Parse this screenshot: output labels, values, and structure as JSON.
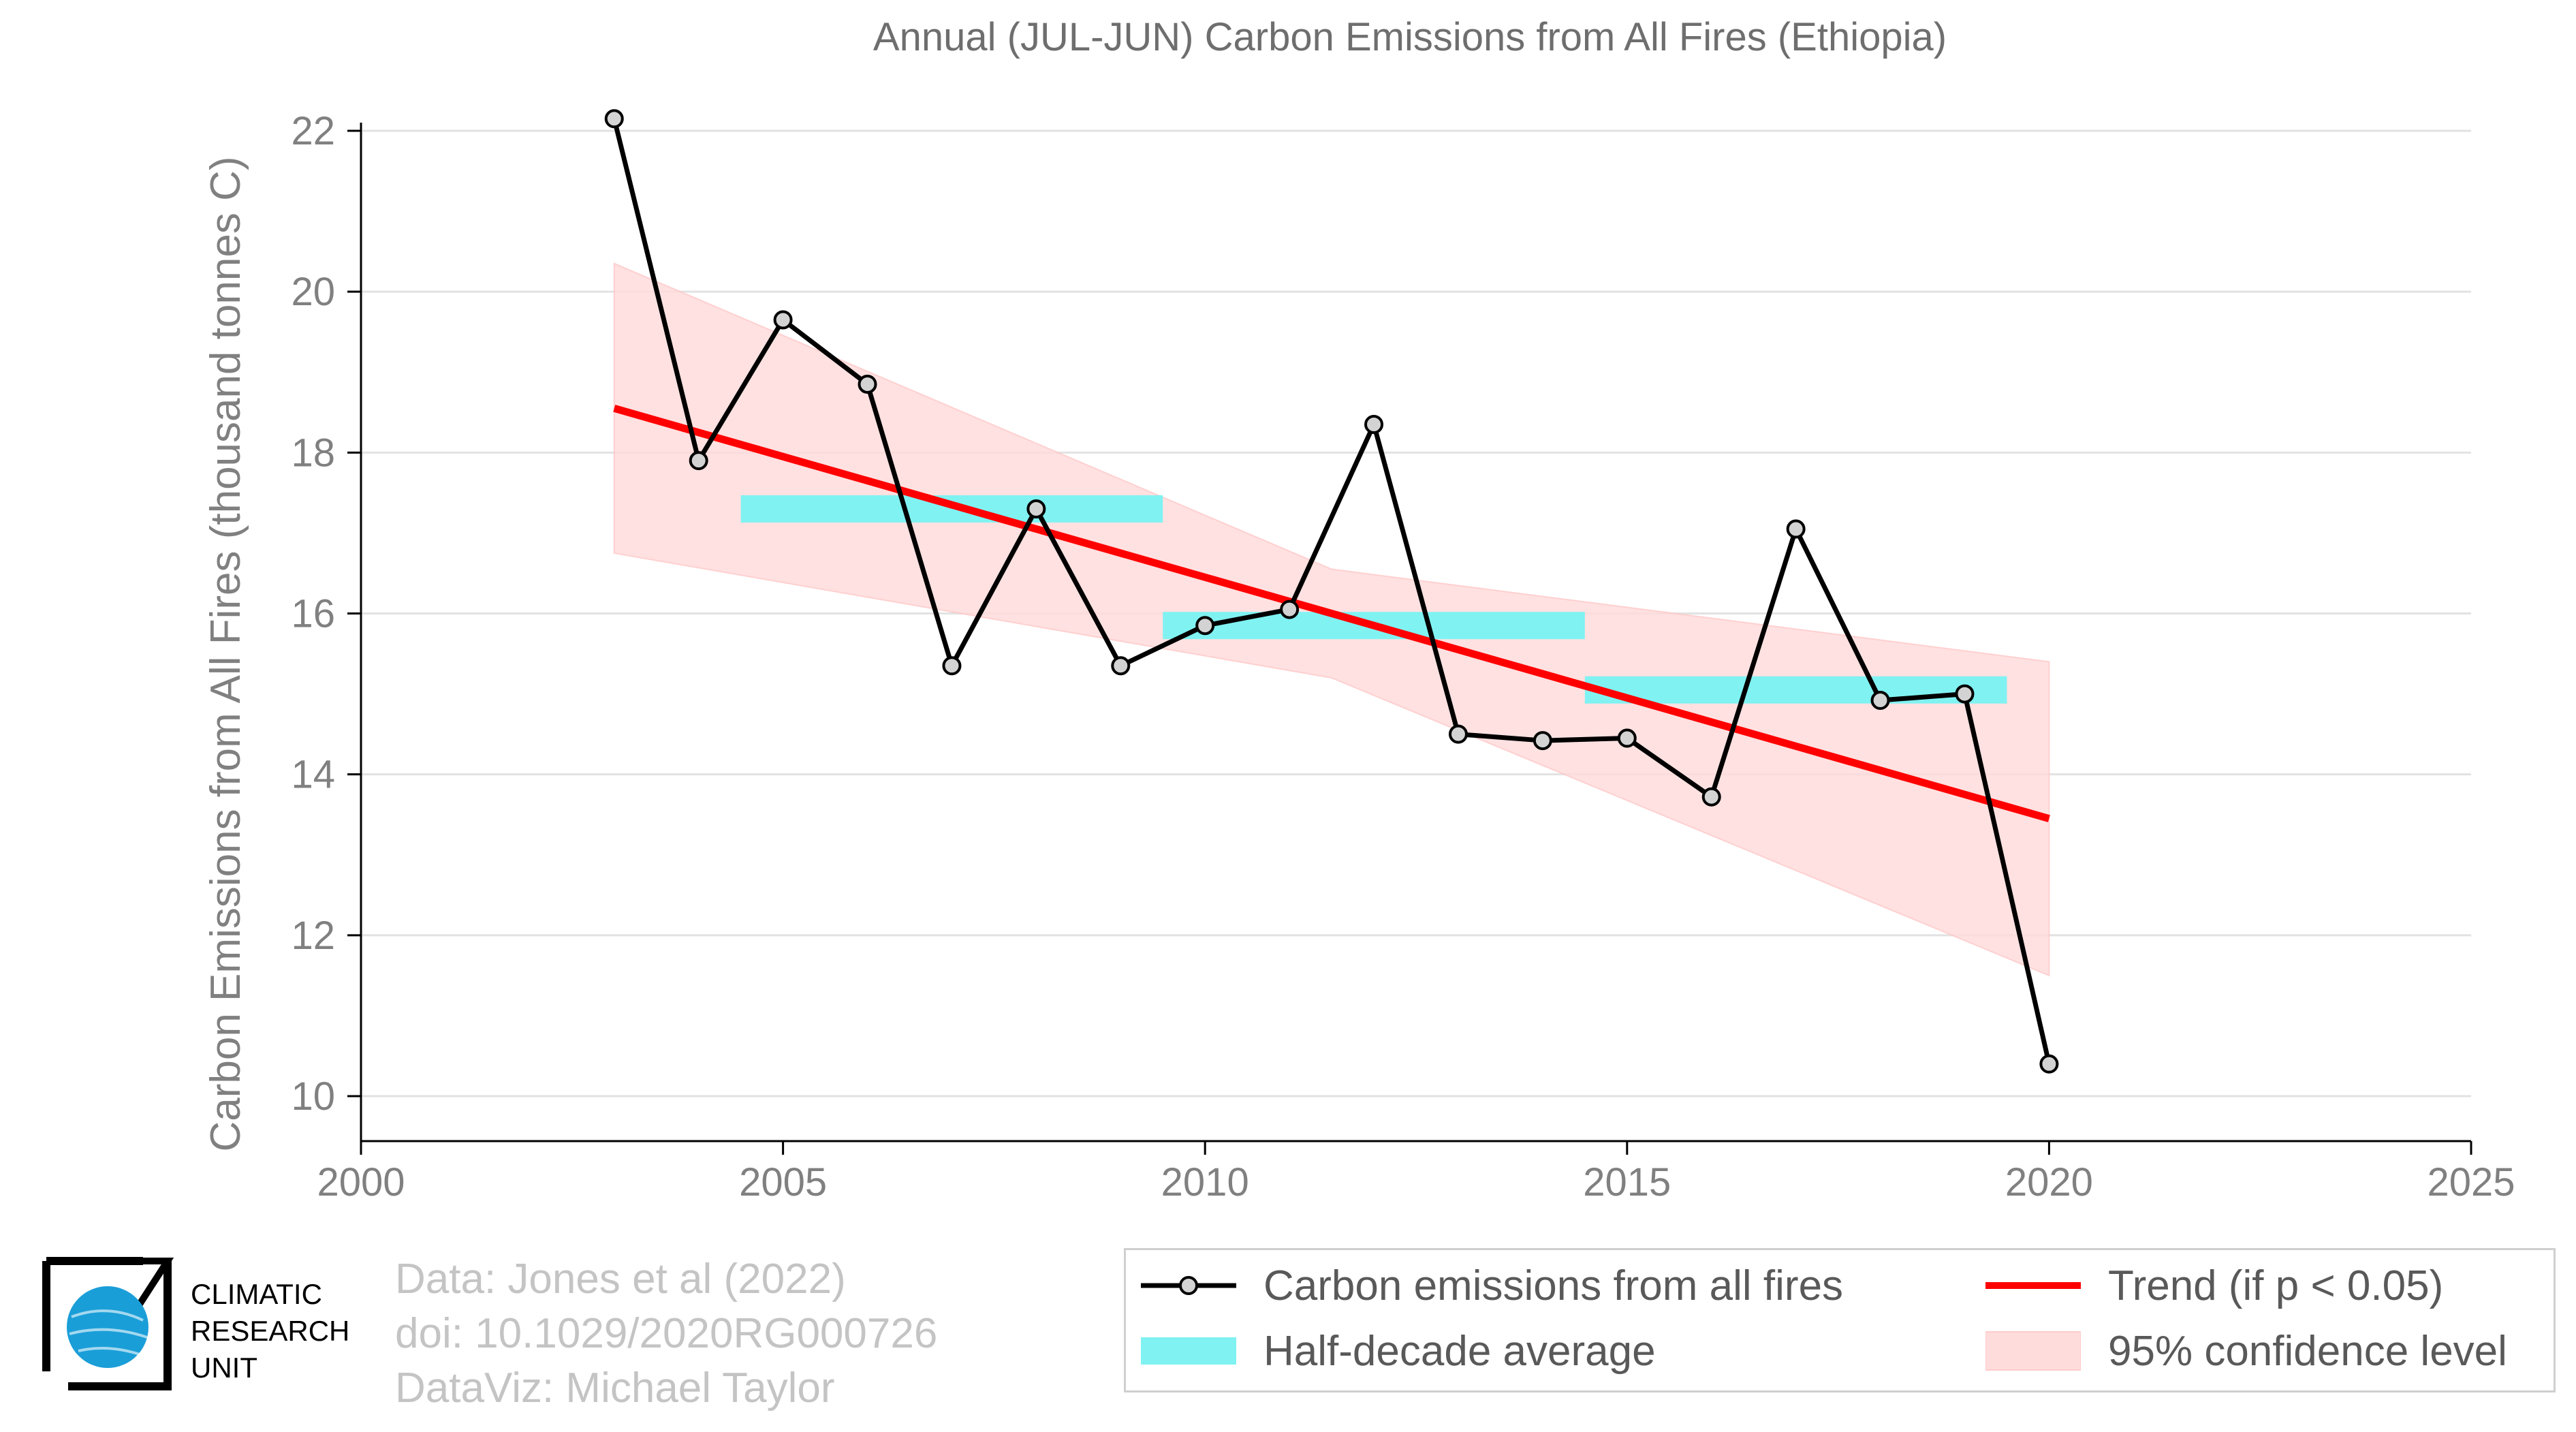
{
  "chart_data": {
    "type": "line",
    "title": "Annual (JUL-JUN) Carbon Emissions from All Fires (Ethiopia)",
    "ylabel": "Carbon Emissions from All Fires (thousand tonnes C)",
    "xlabel": "",
    "xlim": [
      2000,
      2025
    ],
    "ylim": [
      10,
      22
    ],
    "xticks": [
      "2000",
      "2005",
      "2010",
      "2015",
      "2020",
      "2025"
    ],
    "yticks": [
      "10",
      "12",
      "14",
      "16",
      "18",
      "20",
      "22"
    ],
    "grid": "horizontal",
    "legend_position": "bottom-right",
    "series": [
      {
        "name": "Carbon emissions from all fires",
        "color": "#000000",
        "x": [
          2003,
          2004,
          2005,
          2006,
          2007,
          2008,
          2009,
          2010,
          2011,
          2012,
          2013,
          2014,
          2015,
          2016,
          2017,
          2018,
          2019,
          2020
        ],
        "y": [
          22.15,
          17.9,
          19.65,
          18.85,
          15.35,
          17.3,
          15.35,
          15.85,
          16.05,
          18.35,
          14.5,
          14.42,
          14.45,
          13.72,
          17.05,
          14.92,
          15.0,
          10.4
        ]
      }
    ],
    "half_decade_average": {
      "name": "Half-decade average",
      "color": "#80f2f2",
      "segments": [
        {
          "x_start": 2004.5,
          "x_end": 2009.5,
          "value": 17.3
        },
        {
          "x_start": 2009.5,
          "x_end": 2014.5,
          "value": 15.85
        },
        {
          "x_start": 2014.5,
          "x_end": 2019.5,
          "value": 15.05
        }
      ]
    },
    "trend": {
      "name": "Trend (if p < 0.05)",
      "color": "#ff0000",
      "x": [
        2003,
        2020
      ],
      "y": [
        18.55,
        13.45
      ]
    },
    "confidence_band": {
      "name": "95% confidence level",
      "color": "#ffdcdc",
      "x": [
        2003,
        2011.5,
        2020
      ],
      "upper": [
        20.35,
        16.55,
        15.4
      ],
      "lower": [
        16.75,
        15.2,
        11.5
      ]
    }
  },
  "credits": {
    "line1": "Data: Jones et al (2022)",
    "line2": "doi: 10.1029/2020RG000726",
    "line3": "DataViz: Michael Taylor"
  },
  "logo": {
    "line1": "CLIMATIC",
    "line2": "RESEARCH",
    "line3": "UNIT"
  },
  "legend": {
    "emissions": "Carbon emissions from all fires",
    "average": "Half-decade average",
    "trend": "Trend (if p < 0.05)",
    "confidence": "95% confidence level"
  }
}
